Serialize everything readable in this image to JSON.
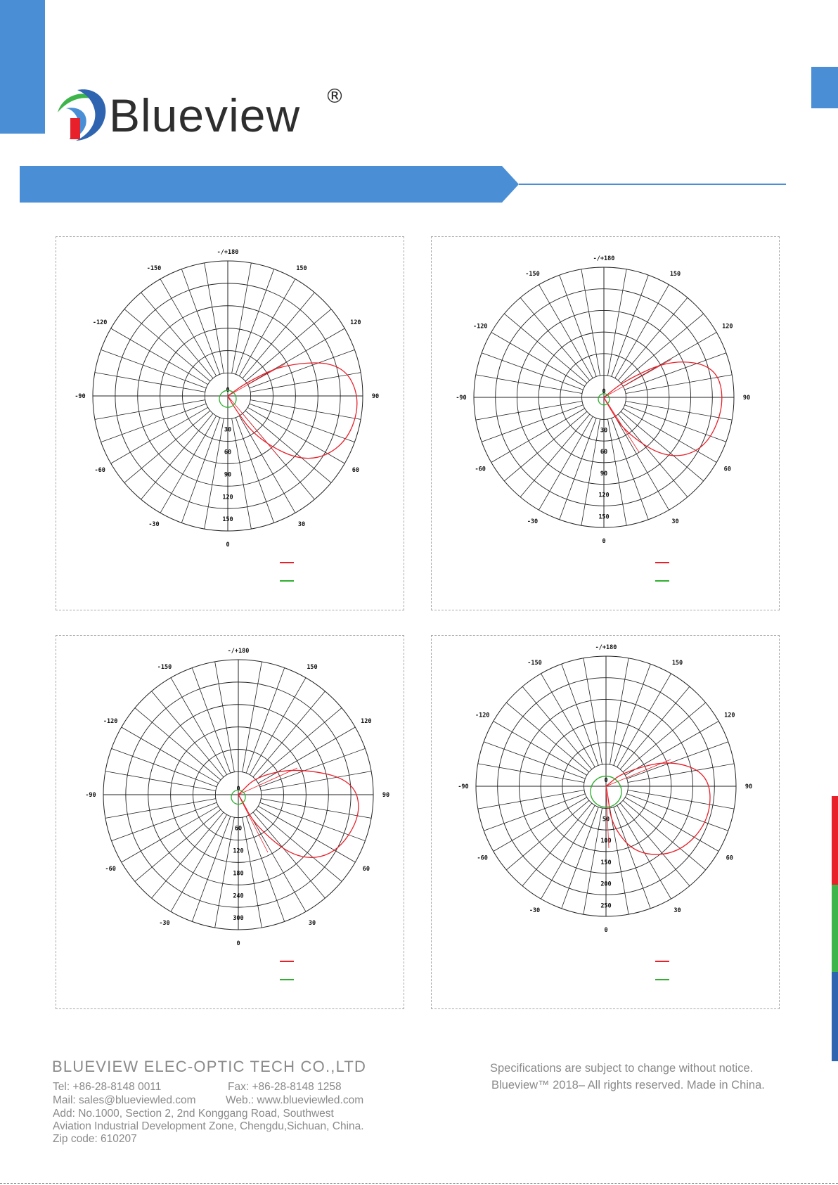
{
  "brand": {
    "name": "Blueview",
    "registered_mark": "®",
    "accent_color": "#4a8fd6"
  },
  "charts": [
    {
      "id": "chart-1",
      "top_label": "-/+180",
      "angle_labels": [
        "-150",
        "150",
        "-120",
        "120",
        "-90",
        "90",
        "-60",
        "60",
        "-30",
        "30"
      ],
      "radial_labels": [
        "0",
        "30",
        "60",
        "90",
        "120",
        "150"
      ],
      "bottom_label": "0",
      "max_radius": 180,
      "ring_values": [
        30,
        60,
        90,
        120,
        150,
        180
      ]
    },
    {
      "id": "chart-2",
      "top_label": "-/+180",
      "angle_labels": [
        "-150",
        "150",
        "-120",
        "120",
        "-90",
        "90",
        "-60",
        "60",
        "-30",
        "30"
      ],
      "radial_labels": [
        "0",
        "30",
        "60",
        "90",
        "120",
        "150"
      ],
      "bottom_label": "0",
      "max_radius": 180,
      "ring_values": [
        30,
        60,
        90,
        120,
        150,
        180
      ]
    },
    {
      "id": "chart-3",
      "top_label": "-/+180",
      "angle_labels": [
        "-150",
        "150",
        "-120",
        "120",
        "-90",
        "90",
        "-60",
        "60",
        "-30",
        "30"
      ],
      "radial_labels": [
        "0",
        "60",
        "120",
        "180",
        "240",
        "300"
      ],
      "bottom_label": "0",
      "max_radius": 360,
      "ring_values": [
        60,
        120,
        180,
        240,
        300,
        360
      ]
    },
    {
      "id": "chart-4",
      "top_label": "-/+180",
      "angle_labels": [
        "-150",
        "150",
        "-120",
        "120",
        "-90",
        "90",
        "-60",
        "60",
        "-30",
        "30"
      ],
      "radial_labels": [
        "0",
        "50",
        "100",
        "150",
        "200",
        "250"
      ],
      "bottom_label": "0",
      "max_radius": 300,
      "ring_values": [
        50,
        100,
        150,
        200,
        250,
        300
      ]
    }
  ],
  "series_colors": {
    "red": "#e8202a",
    "green": "#2fae2f"
  },
  "side_bar_colors": [
    "#e8202a",
    "#3db54a",
    "#2e64b0"
  ],
  "footer": {
    "company": "BLUEVIEW ELEC-OPTIC TECH CO.,LTD",
    "tel": "Tel: +86-28-8148 0011",
    "fax": "Fax: +86-28-8148 1258",
    "mail": "Mail: sales@blueviewled.com",
    "web": "Web.: www.blueviewled.com",
    "address_line1": "Add: No.1000, Section 2, 2nd Konggang Road, Southwest",
    "address_line2": "Aviation Industrial Development Zone, Chengdu,Sichuan, China.",
    "zip": "Zip code: 610207",
    "notice": "Specifications are subject to change without notice.",
    "rights": "Blueview™ 2018– All rights reserved. Made in China."
  }
}
